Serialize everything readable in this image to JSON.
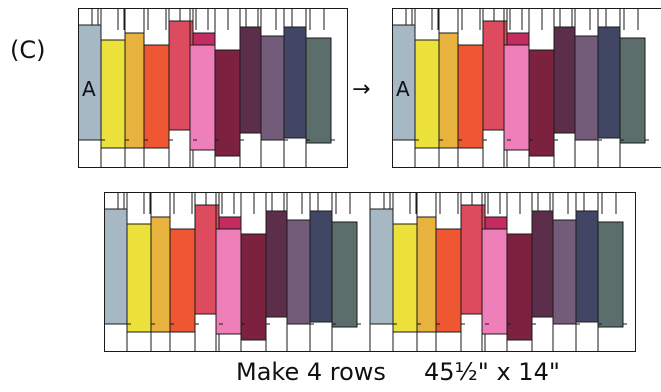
{
  "step_label": "(C)",
  "strip_letter": "A",
  "arrow": "→",
  "caption": {
    "rows": "Make 4 rows",
    "size": "45½\" x 14\""
  },
  "colors": {
    "stroke": "#1a1a1a",
    "background": "#ffffff",
    "strips": [
      "#a5b8c4",
      "#ece03a",
      "#e7b23d",
      "#ef5733",
      "#dc4c5e",
      "#c42b61",
      "#ee7fb8",
      "#7c213f",
      "#5d2e4c",
      "#725c7a",
      "#424665",
      "#5b6e6c"
    ]
  }
}
